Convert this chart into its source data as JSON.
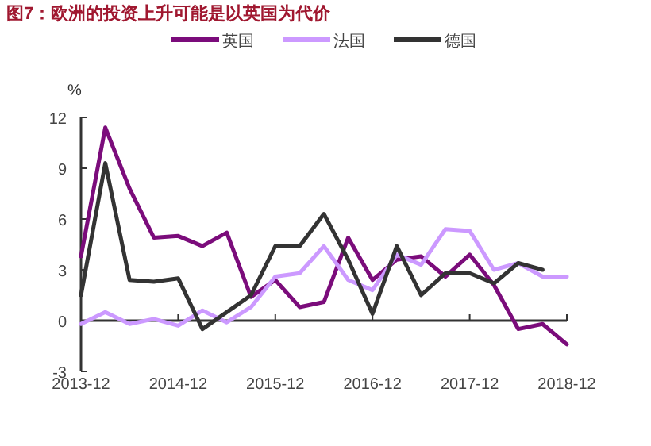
{
  "chart_data": {
    "type": "line",
    "title": "图7：欧洲的投资上升可能是以英国为代价",
    "ylabel": "%",
    "x": [
      "2013-12",
      "2014-03",
      "2014-06",
      "2014-09",
      "2014-12",
      "2015-03",
      "2015-06",
      "2015-09",
      "2015-12",
      "2016-03",
      "2016-06",
      "2016-09",
      "2016-12",
      "2017-03",
      "2017-06",
      "2017-09",
      "2017-12",
      "2018-03",
      "2018-06",
      "2018-09",
      "2018-12"
    ],
    "series": [
      {
        "name": "英国",
        "color": "#7b0c7b",
        "values": [
          3.8,
          11.4,
          7.8,
          4.9,
          5.0,
          4.4,
          5.2,
          1.4,
          2.4,
          0.8,
          1.1,
          4.9,
          2.4,
          3.6,
          3.8,
          2.6,
          3.9,
          2.1,
          -0.5,
          -0.2,
          -1.4
        ]
      },
      {
        "name": "法国",
        "color": "#cc99ff",
        "values": [
          -0.2,
          0.5,
          -0.2,
          0.1,
          -0.3,
          0.6,
          -0.1,
          0.8,
          2.6,
          2.8,
          4.4,
          2.4,
          1.8,
          3.9,
          3.3,
          5.4,
          5.3,
          3.0,
          3.4,
          2.6,
          2.6
        ]
      },
      {
        "name": "德国",
        "color": "#333333",
        "values": [
          1.5,
          9.3,
          2.4,
          2.3,
          2.5,
          -0.5,
          0.5,
          1.5,
          4.4,
          4.4,
          6.3,
          3.6,
          0.4,
          4.4,
          1.5,
          2.8,
          2.8,
          2.2,
          3.4,
          3.0,
          null
        ]
      }
    ],
    "xlim": [
      "2013-12",
      "2018-12"
    ],
    "xticks": [
      "2013-12",
      "2014-12",
      "2015-12",
      "2016-12",
      "2017-12",
      "2018-12"
    ],
    "ylim": [
      -3,
      12
    ],
    "yticks": [
      -3,
      0,
      3,
      6,
      9,
      12
    ],
    "legend": "top right",
    "marker": "none",
    "line_style": "solid"
  }
}
